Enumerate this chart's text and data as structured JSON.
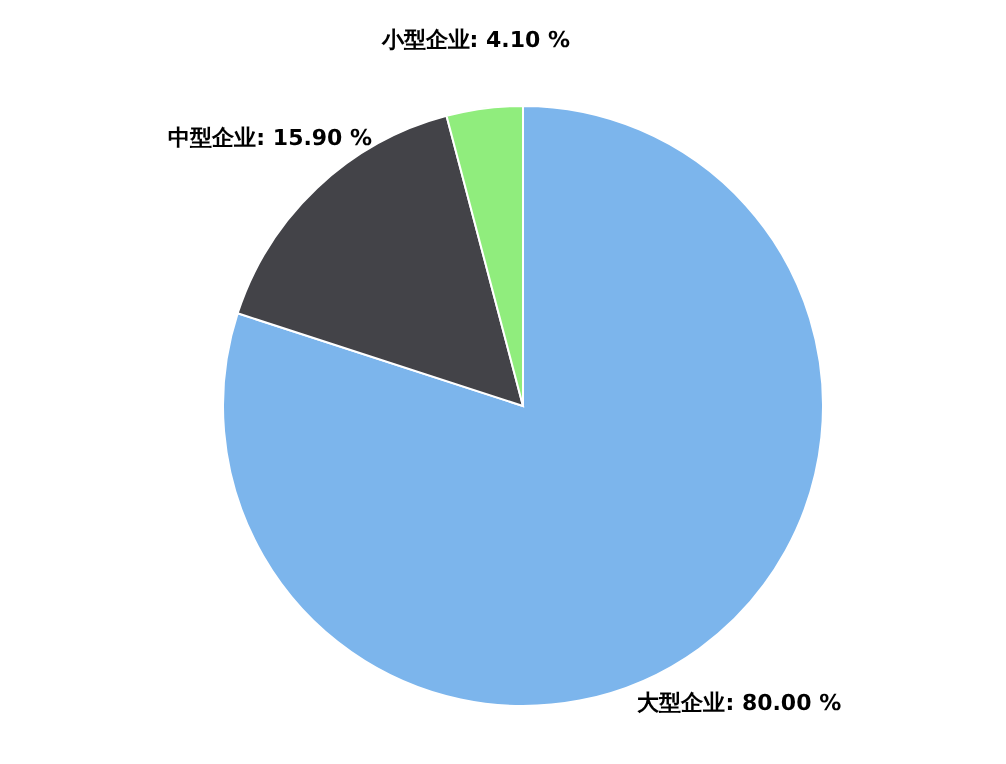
{
  "chart_data": {
    "type": "pie",
    "categories": [
      "大型企业",
      "中型企业",
      "小型企业"
    ],
    "values": [
      80.0,
      15.9,
      4.1
    ],
    "colors": [
      "#7cb5ec",
      "#434348",
      "#90ed7d"
    ],
    "value_labels": [
      "80.00 %",
      "15.90 %",
      "4.10 %"
    ]
  }
}
